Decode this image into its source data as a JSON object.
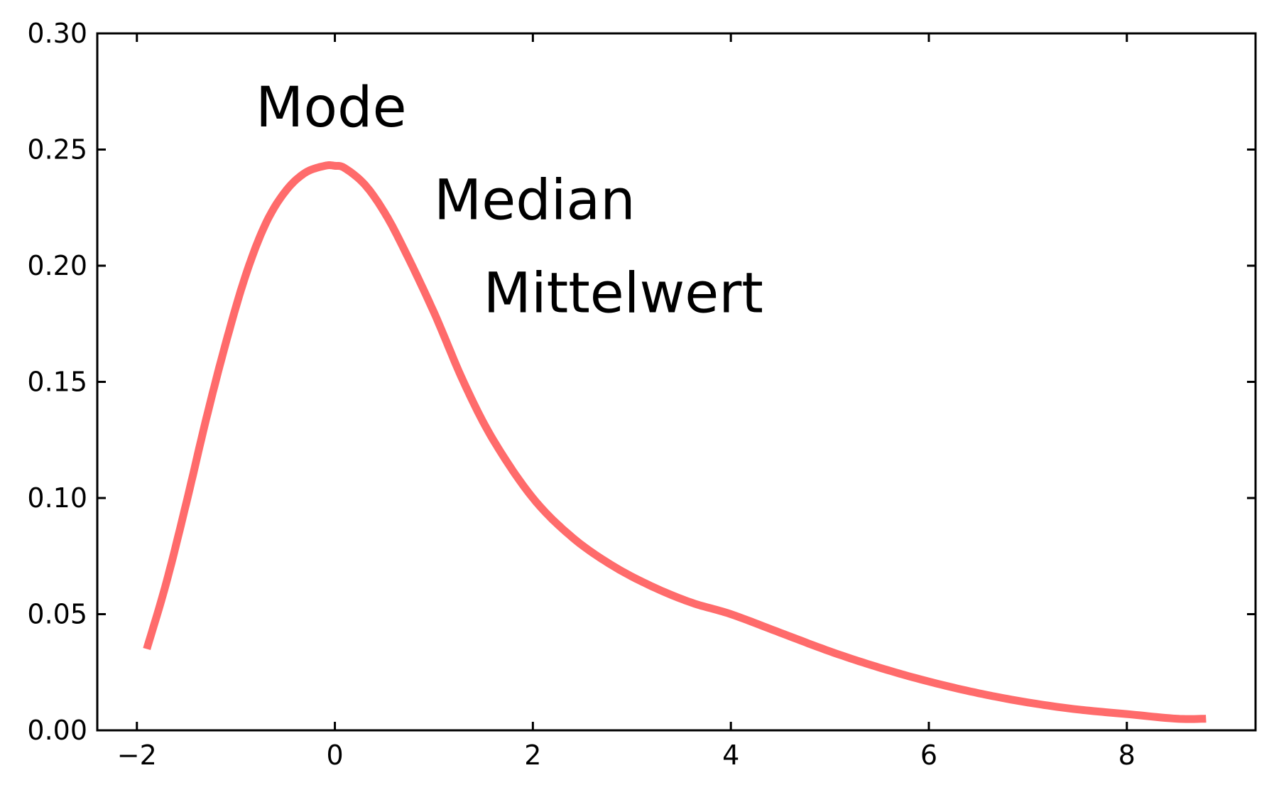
{
  "chart_data": {
    "type": "line",
    "title": "",
    "xlabel": "",
    "ylabel": "",
    "xlim": [
      -2.4,
      9.3
    ],
    "ylim": [
      0.0,
      0.3
    ],
    "grid": false,
    "x_ticks": [
      -2,
      0,
      2,
      4,
      6,
      8
    ],
    "x_tick_labels": [
      "−2",
      "0",
      "2",
      "4",
      "6",
      "8"
    ],
    "y_ticks": [
      0.0,
      0.05,
      0.1,
      0.15,
      0.2,
      0.25,
      0.3
    ],
    "y_tick_labels": [
      "0.00",
      "0.05",
      "0.10",
      "0.15",
      "0.20",
      "0.25",
      "0.30"
    ],
    "series": [
      {
        "color": "#ff6b6b",
        "x": [
          -1.9,
          -1.7,
          -1.5,
          -1.3,
          -1.1,
          -0.9,
          -0.7,
          -0.5,
          -0.3,
          -0.1,
          0.0,
          0.1,
          0.3,
          0.5,
          0.7,
          1.0,
          1.3,
          1.6,
          2.0,
          2.4,
          2.8,
          3.2,
          3.6,
          4.0,
          4.5,
          5.0,
          5.5,
          6.0,
          6.5,
          7.0,
          7.5,
          8.0,
          8.5,
          8.8
        ],
        "y": [
          0.035,
          0.064,
          0.098,
          0.134,
          0.167,
          0.196,
          0.218,
          0.232,
          0.24,
          0.243,
          0.243,
          0.242,
          0.235,
          0.223,
          0.207,
          0.18,
          0.15,
          0.125,
          0.1,
          0.083,
          0.071,
          0.062,
          0.055,
          0.05,
          0.042,
          0.034,
          0.027,
          0.021,
          0.016,
          0.012,
          0.009,
          0.007,
          0.005,
          0.005
        ]
      }
    ],
    "annotations": [
      {
        "text": "Mode",
        "x": -0.8,
        "y": 0.26
      },
      {
        "text": "Median",
        "x": 1.0,
        "y": 0.22
      },
      {
        "text": "Mittelwert",
        "x": 1.5,
        "y": 0.18
      }
    ]
  }
}
